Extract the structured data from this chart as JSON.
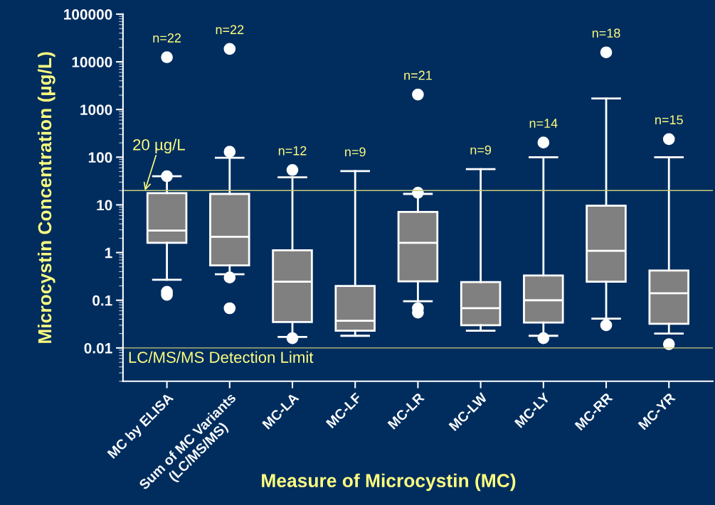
{
  "chart_data": {
    "type": "box",
    "xlabel": "Measure of Microcystin (MC)",
    "ylabel": "Microcystin Concentration (µg/L)",
    "categories": [
      "MC by ELISA",
      "Sum of MC Variants\n(LC/MS/MS)",
      "MC-LA",
      "MC-LF",
      "MC-LR",
      "MC-LW",
      "MC-LY",
      "MC-RR",
      "MC-YR"
    ],
    "boxes": [
      {
        "low": 0.27,
        "q1": 1.6,
        "median": 2.9,
        "q3": 17.6,
        "high": 40,
        "outliers": [
          12500,
          40,
          0.15,
          0.13
        ]
      },
      {
        "low": 0.35,
        "q1": 0.54,
        "median": 2.15,
        "q3": 17,
        "high": 97,
        "outliers": [
          18700,
          130,
          0.3,
          0.068
        ]
      },
      {
        "low": 0.017,
        "q1": 0.035,
        "median": 0.245,
        "q3": 1.12,
        "high": 38,
        "outliers": [
          54,
          0.016
        ]
      },
      {
        "low": 0.018,
        "q1": 0.023,
        "median": 0.037,
        "q3": 0.2,
        "high": 51
      },
      {
        "low": 0.095,
        "q1": 0.25,
        "median": 1.6,
        "q3": 7.1,
        "high": 17,
        "outliers": [
          2060,
          18,
          0.068,
          0.055
        ]
      },
      {
        "low": 0.023,
        "q1": 0.03,
        "median": 0.068,
        "q3": 0.24,
        "high": 56
      },
      {
        "low": 0.018,
        "q1": 0.034,
        "median": 0.1,
        "q3": 0.33,
        "high": 100,
        "outliers": [
          203,
          0.016
        ]
      },
      {
        "low": 0.041,
        "q1": 0.245,
        "median": 1.09,
        "q3": 9.6,
        "high": 1700,
        "outliers": [
          15800,
          0.03
        ]
      },
      {
        "low": 0.02,
        "q1": 0.032,
        "median": 0.14,
        "q3": 0.42,
        "high": 100,
        "outliers": [
          240,
          0.012
        ]
      }
    ],
    "color": "#808080",
    "log": true,
    "ylim": [
      0.002,
      100000
    ],
    "yticks": [
      0.01,
      0.1,
      1,
      10,
      100,
      1000,
      10000,
      100000
    ],
    "grid": false,
    "ref_lines": [
      {
        "axis": "y",
        "value": 20,
        "label": "20 µg/L",
        "color": "#c8cc7a"
      },
      {
        "axis": "y",
        "value": 0.01,
        "label": "LC/MS/MS Detection Limit",
        "color": "#c8cc7a"
      }
    ],
    "annotations": [
      "n=22",
      "n=22",
      "n=12",
      "n=9",
      "n=21",
      "n=9",
      "n=14",
      "n=18",
      "n=15"
    ]
  }
}
